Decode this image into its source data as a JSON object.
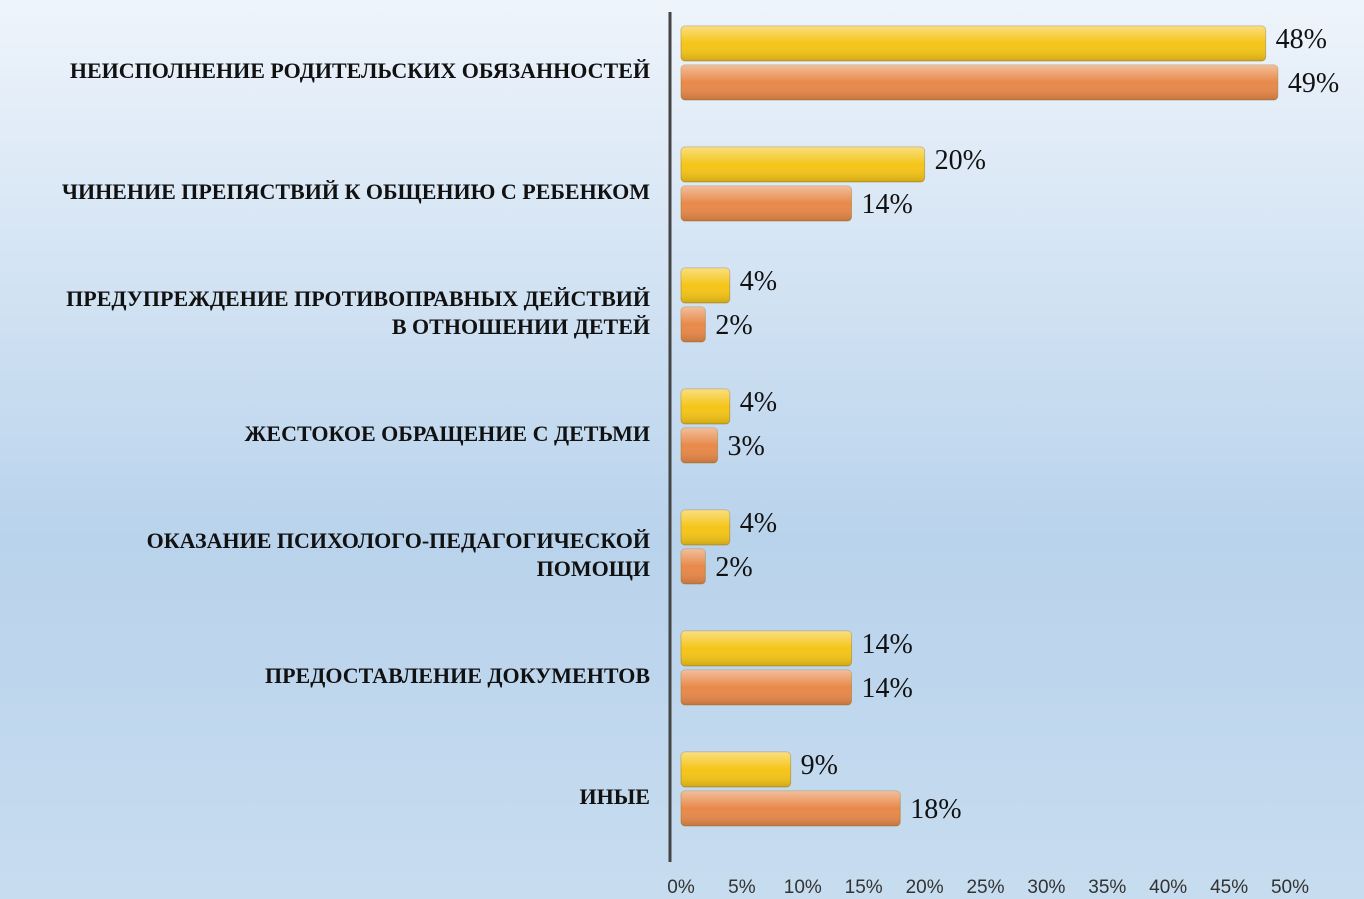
{
  "chart_data": {
    "type": "hbar",
    "categories": [
      "НЕИСПОЛНЕНИЕ РОДИТЕЛЬСКИХ ОБЯЗАННОСТЕЙ",
      "ЧИНЕНИЕ ПРЕПЯСТВИЙ К ОБЩЕНИЮ С РЕБЕНКОМ",
      "ПРЕДУПРЕЖДЕНИЕ ПРОТИВОПРАВНЫХ ДЕЙСТВИЙ\nВ ОТНОШЕНИИ ДЕТЕЙ",
      "ЖЕСТОКОЕ ОБРАЩЕНИЕ С ДЕТЬМИ",
      "ОКАЗАНИЕ ПСИХОЛОГО-ПЕДАГОГИЧЕСКОЙ\nПОМОЩИ",
      "ПРЕДОСТАВЛЕНИЕ ДОКУМЕНТОВ",
      "ИНЫЕ"
    ],
    "series": [
      {
        "color": "#f5c518",
        "values": [
          48,
          20,
          4,
          4,
          4,
          14,
          9
        ],
        "value_labels": [
          "48%",
          "20%",
          "4%",
          "4%",
          "4%",
          "14%",
          "9%"
        ]
      },
      {
        "color": "#e8894a",
        "values": [
          49,
          14,
          2,
          3,
          2,
          14,
          18
        ],
        "value_labels": [
          "49%",
          "14%",
          "2%",
          "3%",
          "2%",
          "14%",
          "18%"
        ]
      }
    ],
    "xlim": [
      0,
      50
    ],
    "xticks": [
      {
        "value": 0,
        "label": "0%"
      },
      {
        "value": 5,
        "label": "5%"
      },
      {
        "value": 10,
        "label": "10%"
      },
      {
        "value": 15,
        "label": "15%"
      },
      {
        "value": 20,
        "label": "20%"
      },
      {
        "value": 25,
        "label": "25%"
      },
      {
        "value": 30,
        "label": "30%"
      },
      {
        "value": 35,
        "label": "35%"
      },
      {
        "value": 40,
        "label": "40%"
      },
      {
        "value": 45,
        "label": "45%"
      },
      {
        "value": 50,
        "label": "50%"
      }
    ]
  }
}
